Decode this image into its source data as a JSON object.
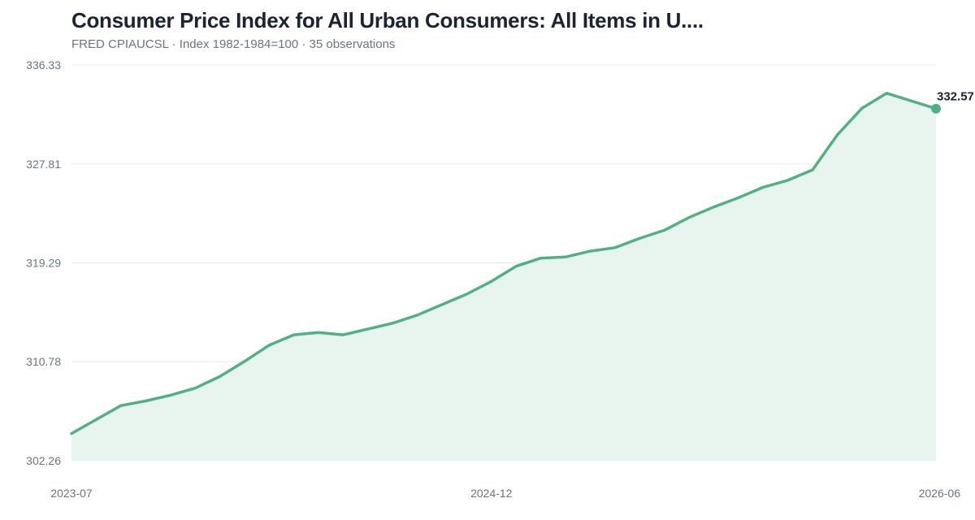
{
  "title": "Consumer Price Index for All Urban Consumers: All Items in U....",
  "subtitle": "FRED CPIAUCSL · Index 1982-1984=100 · 35 observations",
  "colors": {
    "line": "#52b085",
    "area": "#e8f5ee",
    "grid": "#e6e8eb"
  },
  "chart_data": {
    "type": "area",
    "title": "Consumer Price Index for All Urban Consumers: All Items in U....",
    "ylabel": "",
    "xlabel": "",
    "ylim": [
      302.26,
      336.33
    ],
    "y_ticks": [
      "302.26",
      "310.78",
      "319.29",
      "327.81",
      "336.33"
    ],
    "x_ticks": [
      {
        "label": "2023-07",
        "index": 0
      },
      {
        "label": "2024-12",
        "index": 17
      },
      {
        "label": "2026-06",
        "index": 35
      }
    ],
    "grid": true,
    "last_value_label": "332.57",
    "series": [
      {
        "values": [
          304.6,
          305.8,
          307.0,
          307.4,
          307.9,
          308.5,
          309.5,
          310.8,
          312.2,
          313.1,
          313.3,
          313.1,
          313.6,
          314.1,
          314.8,
          315.7,
          316.6,
          317.7,
          319.0,
          319.7,
          319.8,
          320.3,
          320.6,
          321.4,
          322.1,
          323.2,
          324.1,
          324.9,
          325.8,
          326.4,
          327.3,
          330.3,
          332.6,
          333.9,
          332.57
        ]
      }
    ]
  }
}
